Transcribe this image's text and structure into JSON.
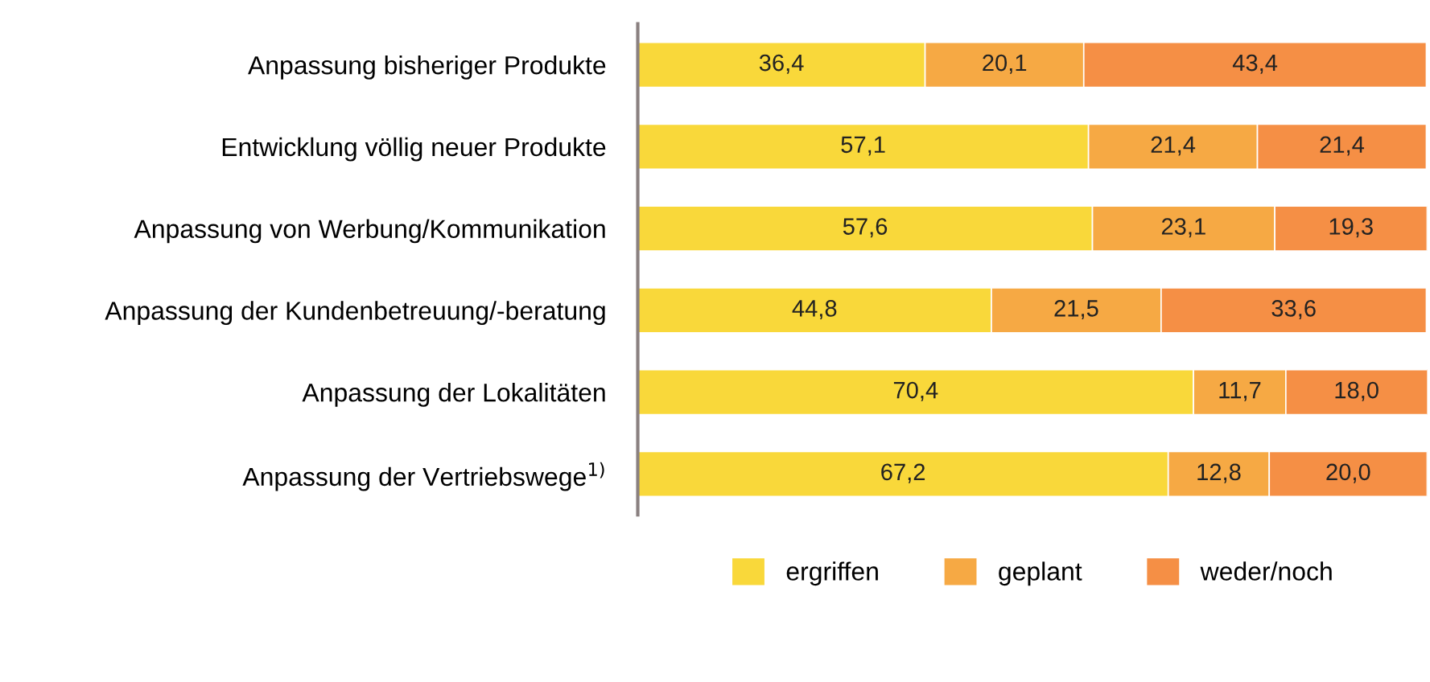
{
  "chart_data": {
    "type": "bar",
    "orientation": "horizontal",
    "stacked": true,
    "categories": [
      "Anpassung bisheriger Produkte",
      "Entwicklung völlig neuer Produkte",
      "Anpassung von Werbung/Kommunikation",
      "Anpassung der Kundenbetreuung/-beratung",
      "Anpassung der Lokalitäten",
      "Anpassung der Vertriebswege$^{1)}$"
    ],
    "series": [
      {
        "name": "ergriffen",
        "color": "#f9d83a",
        "values": [
          36.4,
          57.1,
          57.6,
          44.8,
          70.4,
          67.2
        ],
        "value_labels": [
          "36,4",
          "57,1",
          "57,6",
          "44,8",
          "70,4",
          "67,2"
        ]
      },
      {
        "name": "geplant",
        "color": "#f6a944",
        "values": [
          20.1,
          21.4,
          23.1,
          21.5,
          11.7,
          12.8
        ],
        "value_labels": [
          "20,1",
          "21,4",
          "23,1",
          "21,5",
          "11,7",
          "12,8"
        ]
      },
      {
        "name": "weder/noch",
        "color": "#f58f45",
        "values": [
          43.4,
          21.4,
          19.3,
          33.6,
          18.0,
          20.0
        ],
        "value_labels": [
          "43,4",
          "21,4",
          "19,3",
          "33,6",
          "18,0",
          "20,0"
        ]
      }
    ],
    "xlim": [
      0,
      100
    ],
    "legend": "bottom",
    "grid": false,
    "tick_labels": "y"
  }
}
